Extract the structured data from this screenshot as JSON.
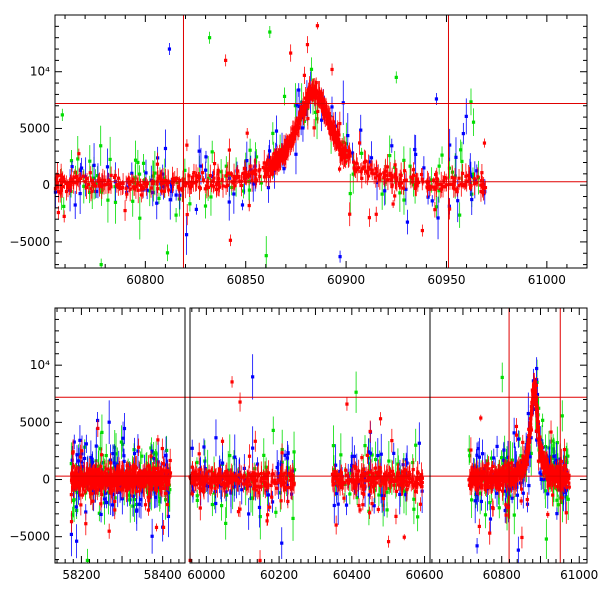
{
  "chart_data": [
    {
      "type": "scatter",
      "title": "",
      "xlabel": "",
      "ylabel": "",
      "xlim": [
        60755,
        61020
      ],
      "ylim": [
        -7300,
        15000
      ],
      "x_ticks": [
        60800,
        60850,
        60900,
        60950,
        61000
      ],
      "y_ticks": [
        {
          "value": -5000,
          "label": "−5000"
        },
        {
          "value": 0,
          "label": "0"
        },
        {
          "value": 5000,
          "label": "5000"
        },
        {
          "value": 10000,
          "label": "10⁴"
        }
      ],
      "hlines": [
        300,
        7200
      ],
      "vlines": [
        60819,
        60951
      ],
      "line_color": "#e00000",
      "series": [
        {
          "name": "red",
          "color": "#ff0000",
          "seed": 11
        },
        {
          "name": "green",
          "color": "#00dd00",
          "seed": 23
        },
        {
          "name": "blue",
          "color": "#0000ff",
          "seed": 37
        }
      ],
      "baseline_range": [
        60755,
        60970
      ],
      "peak_center": 60884,
      "peak_height": 8200,
      "peak_width": 11,
      "notable_points": [
        {
          "series": "blue",
          "x": 60812,
          "y": 12000
        },
        {
          "series": "green",
          "x": 60832,
          "y": 13000
        },
        {
          "series": "red",
          "x": 60840,
          "y": 11000
        },
        {
          "series": "green",
          "x": 60862,
          "y": 13500
        },
        {
          "series": "red",
          "x": 60893,
          "y": 10200
        },
        {
          "series": "blue",
          "x": 60945,
          "y": 7600
        },
        {
          "series": "green",
          "x": 60925,
          "y": 9500
        },
        {
          "series": "green",
          "x": 60778,
          "y": -7000
        },
        {
          "series": "blue",
          "x": 60897,
          "y": -6300
        },
        {
          "series": "red",
          "x": 60938,
          "y": -4000
        }
      ]
    },
    {
      "type": "scatter",
      "title": "",
      "xlabel": "",
      "ylabel": "",
      "ylim": [
        -7300,
        15000
      ],
      "y_ticks": [
        {
          "value": -5000,
          "label": "−5000"
        },
        {
          "value": 0,
          "label": "0"
        },
        {
          "value": 5000,
          "label": "5000"
        },
        {
          "value": 10000,
          "label": "10⁴"
        }
      ],
      "hlines": [
        300,
        7200
      ],
      "line_color": "#e00000",
      "x_ticks": [
        {
          "label": "58200"
        },
        {
          "label": "58400"
        },
        {
          "label": "60000"
        },
        {
          "label": "60200"
        },
        {
          "label": "60400"
        },
        {
          "label": "60600"
        },
        {
          "label": "60800"
        },
        {
          "label": "61000"
        }
      ],
      "segments": [
        {
          "xlim": [
            58135,
            58455
          ],
          "data_range": [
            58175,
            58420
          ],
          "seed": 101,
          "ticks": [
            58200,
            58400
          ]
        },
        {
          "xlim": [
            59955,
            60615
          ],
          "data_range": [
            59955,
            60595
          ],
          "gaps": [
            [
              60245,
              60345
            ]
          ],
          "seed": 202,
          "ticks": [
            60000,
            60200,
            60400,
            60600
          ]
        },
        {
          "xlim": [
            60615,
            61020
          ],
          "data_range": [
            60715,
            60975
          ],
          "seed": 303,
          "ticks": [
            60800,
            61000
          ],
          "vlines": [
            60819,
            60951
          ],
          "peak_center": 60884,
          "peak_height": 8200,
          "peak_width": 11
        }
      ],
      "series": [
        {
          "name": "red",
          "color": "#ff0000"
        },
        {
          "name": "green",
          "color": "#00dd00"
        },
        {
          "name": "blue",
          "color": "#0000ff"
        }
      ]
    }
  ]
}
